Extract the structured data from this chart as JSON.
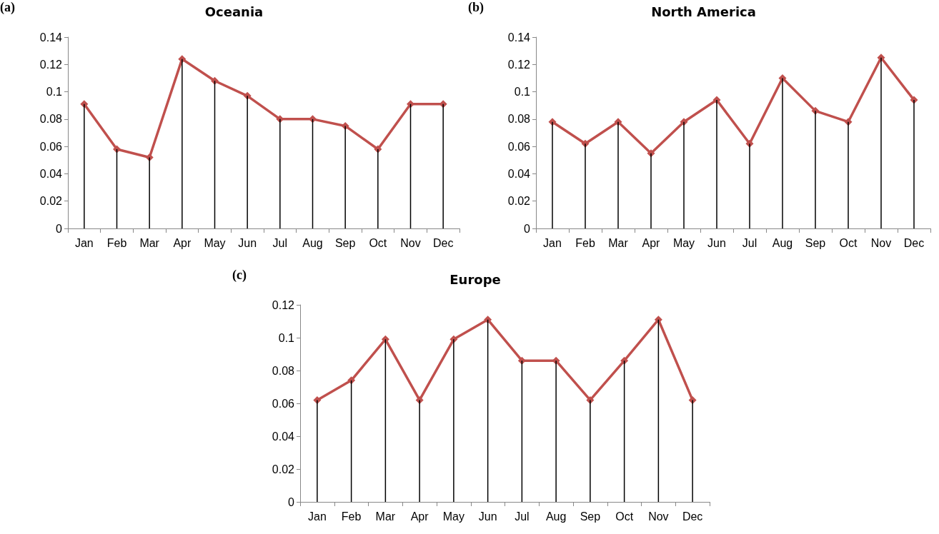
{
  "chart_data": [
    {
      "type": "line",
      "title": "Oceania",
      "annotations": [
        "(a)"
      ],
      "categories": [
        "Jan",
        "Feb",
        "Mar",
        "Apr",
        "May",
        "Jun",
        "Jul",
        "Aug",
        "Sep",
        "Oct",
        "Nov",
        "Dec"
      ],
      "ylim": [
        0,
        0.14
      ],
      "yticks": [
        0,
        0.02,
        0.04,
        0.06,
        0.08,
        0.1,
        0.12,
        0.14
      ],
      "grid": false,
      "marker": "diamond",
      "line_style": "solid",
      "series": [
        {
          "type": "bar",
          "color": "#000000",
          "values": [
            0.091,
            0.058,
            0.052,
            0.124,
            0.108,
            0.097,
            0.08,
            0.08,
            0.075,
            0.058,
            0.091,
            0.091
          ]
        },
        {
          "color": "#c0504d",
          "values": [
            0.091,
            0.058,
            0.052,
            0.124,
            0.108,
            0.097,
            0.08,
            0.08,
            0.075,
            0.058,
            0.091,
            0.091
          ]
        }
      ]
    },
    {
      "type": "line",
      "title": "North America",
      "annotations": [
        "(b)"
      ],
      "categories": [
        "Jan",
        "Feb",
        "Mar",
        "Apr",
        "May",
        "Jun",
        "Jul",
        "Aug",
        "Sep",
        "Oct",
        "Nov",
        "Dec"
      ],
      "ylim": [
        0,
        0.14
      ],
      "yticks": [
        0,
        0.02,
        0.04,
        0.06,
        0.08,
        0.1,
        0.12,
        0.14
      ],
      "grid": false,
      "marker": "diamond",
      "line_style": "solid",
      "series": [
        {
          "type": "bar",
          "color": "#000000",
          "values": [
            0.078,
            0.062,
            0.078,
            0.055,
            0.078,
            0.094,
            0.062,
            0.11,
            0.086,
            0.078,
            0.125,
            0.094
          ]
        },
        {
          "color": "#c0504d",
          "values": [
            0.078,
            0.062,
            0.078,
            0.055,
            0.078,
            0.094,
            0.062,
            0.11,
            0.086,
            0.078,
            0.125,
            0.094
          ]
        }
      ]
    },
    {
      "type": "line",
      "title": "Europe",
      "annotations": [
        "(c)"
      ],
      "categories": [
        "Jan",
        "Feb",
        "Mar",
        "Apr",
        "May",
        "Jun",
        "Jul",
        "Aug",
        "Sep",
        "Oct",
        "Nov",
        "Dec"
      ],
      "ylim": [
        0,
        0.12
      ],
      "yticks": [
        0,
        0.02,
        0.04,
        0.06,
        0.08,
        0.1,
        0.12
      ],
      "grid": false,
      "marker": "diamond",
      "line_style": "solid",
      "series": [
        {
          "type": "bar",
          "color": "#000000",
          "values": [
            0.062,
            0.074,
            0.099,
            0.062,
            0.099,
            0.111,
            0.086,
            0.086,
            0.062,
            0.086,
            0.111,
            0.062
          ]
        },
        {
          "color": "#c0504d",
          "values": [
            0.062,
            0.074,
            0.099,
            0.062,
            0.099,
            0.111,
            0.086,
            0.086,
            0.062,
            0.086,
            0.111,
            0.062
          ]
        }
      ]
    }
  ]
}
